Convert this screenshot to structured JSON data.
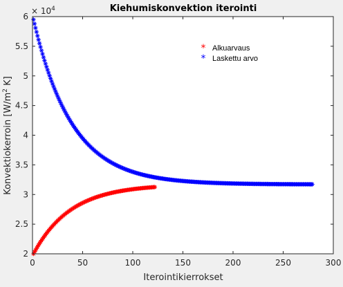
{
  "chart_data": {
    "type": "scatter",
    "title": "Kiehumiskonvektion iterointi",
    "xlabel": "Iterointikierrokset",
    "ylabel_main": "Konvektiokerroin [W/m",
    "ylabel_sup": "2",
    "ylabel_end": " K]",
    "exponent_base": "× 10",
    "exponent_power": "4",
    "xlim": [
      0,
      300
    ],
    "ylim": [
      2,
      6
    ],
    "xticks": [
      0,
      50,
      100,
      150,
      200,
      250,
      300
    ],
    "xtick_labels": [
      "0",
      "50",
      "100",
      "150",
      "200",
      "250",
      "300"
    ],
    "yticks": [
      2,
      2.5,
      3,
      3.5,
      4,
      4.5,
      5,
      5.5,
      6
    ],
    "ytick_labels": [
      "2",
      "2.5",
      "3",
      "3.5",
      "4",
      "4.5",
      "5",
      "5.5",
      "6"
    ],
    "grid": false,
    "legend_position": "top-right",
    "marker": "*",
    "series": [
      {
        "name": "Alkuarvaus",
        "color": "#ff0000",
        "x_start": 1,
        "x_end": 122,
        "y_start": 2.0,
        "y_end": 3.17,
        "y_asymptote": 3.17,
        "decay": 0.027
      },
      {
        "name": "Laskettu arvo",
        "color": "#0000ff",
        "x_start": 1,
        "x_end": 279,
        "y_start": 5.95,
        "y_end": 3.17,
        "y_asymptote": 3.17,
        "decay": 0.026
      }
    ]
  }
}
